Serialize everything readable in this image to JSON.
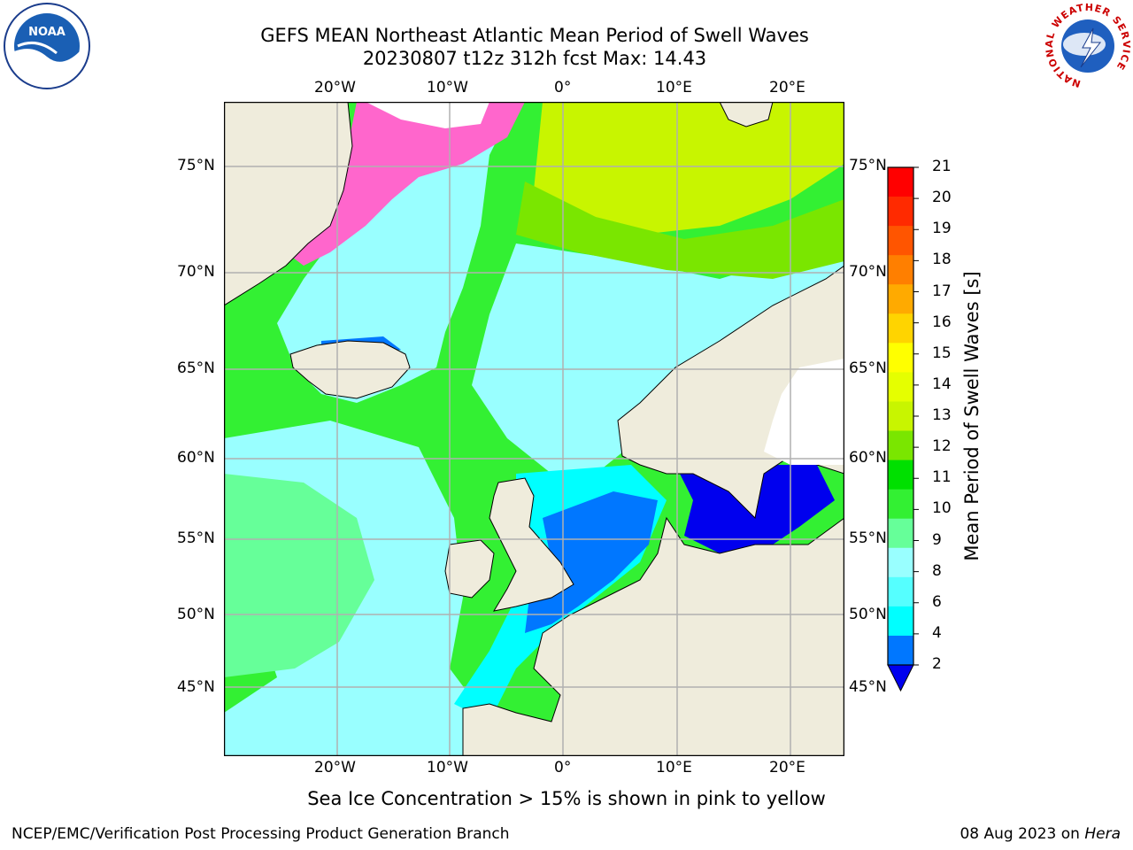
{
  "header": {
    "title_line1": "GEFS MEAN Northeast Atlantic Mean Period of Swell Waves",
    "title_line2": "20230807 t12z 312h fcst   Max: 14.43"
  },
  "map": {
    "top_lon_labels": [
      "20°W",
      "10°W",
      "0°",
      "10°E",
      "20°E"
    ],
    "bottom_lon_labels": [
      "20°W",
      "10°W",
      "0°",
      "10°E",
      "20°E"
    ],
    "left_lat_labels": [
      "75°N",
      "70°N",
      "65°N",
      "60°N",
      "55°N",
      "50°N",
      "45°N"
    ],
    "right_lat_labels": [
      "75°N",
      "70°N",
      "65°N",
      "60°N",
      "55°N",
      "50°N",
      "45°N"
    ],
    "land_color": "#efecdc",
    "grid_color": "#b0b0b0"
  },
  "colorbar": {
    "title": "Mean Period of Swell Waves [s]",
    "ticks": [
      "21",
      "20",
      "19",
      "18",
      "17",
      "16",
      "15",
      "14",
      "13",
      "12",
      "11",
      "10",
      "9",
      "8",
      "6",
      "4",
      "2"
    ],
    "colors_top_to_bottom": [
      "#ff0000",
      "#ff2a00",
      "#ff5500",
      "#ff7f00",
      "#ffaa00",
      "#ffd400",
      "#ffff00",
      "#e5ff00",
      "#c8f500",
      "#7ae600",
      "#00e000",
      "#33f033",
      "#66ff99",
      "#99ffff",
      "#55ffff",
      "#00ffff",
      "#0077ff"
    ],
    "under_color": "#0000ee"
  },
  "note": "Sea Ice Concentration > 15% is shown in pink to yellow",
  "footer": {
    "left": "NCEP/EMC/Verification Post Processing Product Generation Branch",
    "date": "08 Aug 2023 on",
    "host": "Hera"
  },
  "logos": {
    "noaa_text": "NOAA",
    "nws_ring_text": "NATIONAL WEATHER SERVICE"
  }
}
